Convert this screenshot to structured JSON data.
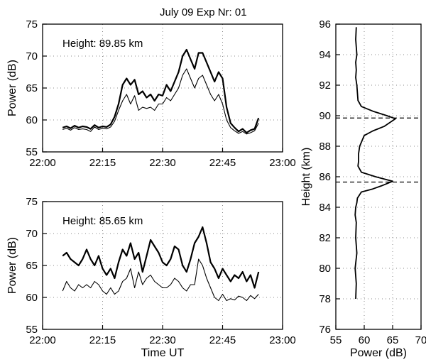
{
  "header": "July 09   Exp Nr: 01",
  "chart_data": [
    {
      "id": "top",
      "type": "line",
      "annotation": "Height: 89.85 km",
      "xlabel": "",
      "ylabel": "Power (dB)",
      "xlim": [
        0,
        60
      ],
      "ylim": [
        55,
        75
      ],
      "xticks": [
        0,
        15,
        30,
        45,
        60
      ],
      "xtick_labels": [
        "22:00",
        "22:15",
        "22:30",
        "22:45",
        "23:00"
      ],
      "yticks": [
        55,
        60,
        65,
        70,
        75
      ],
      "ytick_labels": [
        "55",
        "60",
        "65",
        "70",
        "75"
      ],
      "grid": true,
      "series": [
        {
          "style": "thick",
          "x": [
            5,
            6,
            7,
            8,
            9,
            10,
            11,
            12,
            13,
            14,
            15,
            16,
            17,
            18,
            19,
            20,
            21,
            22,
            23,
            24,
            25,
            26,
            27,
            28,
            29,
            30,
            31,
            32,
            33,
            34,
            35,
            36,
            37,
            38,
            39,
            40,
            41,
            42,
            43,
            44,
            45,
            46,
            47,
            48,
            49,
            50,
            51,
            52,
            53,
            54
          ],
          "y": [
            58.8,
            59.0,
            58.7,
            59.1,
            58.8,
            59.0,
            58.9,
            58.6,
            59.2,
            58.8,
            59.0,
            58.9,
            59.3,
            60.5,
            62.5,
            65.5,
            66.5,
            65.5,
            66.3,
            64.0,
            64.5,
            63.5,
            64.0,
            63.0,
            64.0,
            63.8,
            65.5,
            64.5,
            66.0,
            67.5,
            70.0,
            71.0,
            69.5,
            68.0,
            70.5,
            70.5,
            69.0,
            67.5,
            66.0,
            67.5,
            66.5,
            62.0,
            59.5,
            58.8,
            58.2,
            58.6,
            58.0,
            58.4,
            58.6,
            60.3
          ]
        },
        {
          "style": "thin",
          "x": [
            5,
            6,
            7,
            8,
            9,
            10,
            11,
            12,
            13,
            14,
            15,
            16,
            17,
            18,
            19,
            20,
            21,
            22,
            23,
            24,
            25,
            26,
            27,
            28,
            29,
            30,
            31,
            32,
            33,
            34,
            35,
            36,
            37,
            38,
            39,
            40,
            41,
            42,
            43,
            44,
            45,
            46,
            47,
            48,
            49,
            50,
            51,
            52,
            53,
            54
          ],
          "y": [
            58.5,
            58.7,
            58.4,
            58.8,
            58.5,
            58.6,
            58.5,
            58.2,
            58.9,
            58.5,
            58.7,
            58.6,
            58.9,
            59.8,
            61.5,
            63.0,
            64.0,
            62.5,
            63.8,
            61.5,
            62.0,
            61.8,
            62.0,
            61.5,
            62.5,
            62.5,
            63.5,
            63.0,
            64.0,
            65.0,
            67.0,
            68.0,
            66.5,
            65.0,
            66.5,
            67.0,
            65.5,
            64.0,
            63.0,
            64.0,
            62.5,
            60.0,
            58.8,
            58.3,
            57.9,
            58.2,
            57.8,
            58.0,
            58.3,
            59.5
          ]
        }
      ]
    },
    {
      "id": "bottom",
      "type": "line",
      "annotation": "Height: 85.65 km",
      "xlabel": "Time UT",
      "ylabel": "Power (dB)",
      "xlim": [
        0,
        60
      ],
      "ylim": [
        55,
        75
      ],
      "xticks": [
        0,
        15,
        30,
        45,
        60
      ],
      "xtick_labels": [
        "22:00",
        "22:15",
        "22:30",
        "22:45",
        "23:00"
      ],
      "yticks": [
        55,
        60,
        65,
        70,
        75
      ],
      "ytick_labels": [
        "55",
        "60",
        "65",
        "70",
        "75"
      ],
      "grid": true,
      "series": [
        {
          "style": "thick",
          "x": [
            5,
            6,
            7,
            8,
            9,
            10,
            11,
            12,
            13,
            14,
            15,
            16,
            17,
            18,
            19,
            20,
            21,
            22,
            23,
            24,
            25,
            26,
            27,
            28,
            29,
            30,
            31,
            32,
            33,
            34,
            35,
            36,
            37,
            38,
            39,
            40,
            41,
            42,
            43,
            44,
            45,
            46,
            47,
            48,
            49,
            50,
            51,
            52,
            53,
            54
          ],
          "y": [
            66.5,
            67.0,
            66.0,
            65.5,
            65.0,
            66.0,
            67.5,
            66.0,
            65.0,
            66.5,
            64.5,
            63.5,
            64.5,
            63.0,
            65.5,
            67.5,
            66.5,
            68.5,
            66.0,
            67.0,
            64.0,
            66.5,
            69.0,
            68.0,
            67.0,
            65.5,
            65.0,
            66.0,
            68.0,
            67.5,
            65.0,
            64.0,
            66.0,
            68.5,
            69.5,
            71.0,
            68.5,
            65.5,
            64.5,
            63.0,
            64.5,
            63.5,
            62.5,
            63.5,
            63.0,
            64.0,
            62.5,
            63.5,
            61.5,
            64.0
          ]
        },
        {
          "style": "thin",
          "x": [
            5,
            6,
            7,
            8,
            9,
            10,
            11,
            12,
            13,
            14,
            15,
            16,
            17,
            18,
            19,
            20,
            21,
            22,
            23,
            24,
            25,
            26,
            27,
            28,
            29,
            30,
            31,
            32,
            33,
            34,
            35,
            36,
            37,
            38,
            39,
            40,
            41,
            42,
            43,
            44,
            45,
            46,
            47,
            48,
            49,
            50,
            51,
            52,
            53,
            54
          ],
          "y": [
            61.0,
            62.5,
            61.5,
            61.0,
            62.0,
            61.5,
            62.0,
            61.5,
            62.5,
            62.0,
            61.0,
            60.5,
            61.5,
            60.5,
            61.0,
            62.5,
            63.0,
            64.5,
            61.5,
            64.0,
            62.0,
            63.0,
            63.5,
            62.5,
            62.0,
            61.5,
            61.5,
            62.0,
            63.0,
            62.5,
            61.5,
            61.0,
            62.0,
            62.0,
            66.0,
            65.0,
            63.0,
            61.5,
            60.0,
            59.5,
            60.5,
            59.5,
            59.8,
            59.6,
            60.2,
            60.0,
            59.5,
            60.3,
            59.8,
            60.5
          ]
        }
      ]
    },
    {
      "id": "profile",
      "type": "line",
      "annotation": "",
      "xlabel": "Power (dB)",
      "ylabel": "Height (km)",
      "xlim": [
        55,
        70
      ],
      "ylim": [
        76,
        96
      ],
      "xticks": [
        55,
        60,
        65,
        70
      ],
      "xtick_labels": [
        "55",
        "60",
        "65",
        "70"
      ],
      "yticks": [
        76,
        78,
        80,
        82,
        84,
        86,
        88,
        90,
        92,
        94,
        96
      ],
      "ytick_labels": [
        "76",
        "78",
        "80",
        "82",
        "84",
        "86",
        "88",
        "90",
        "92",
        "94",
        "96"
      ],
      "grid": true,
      "reference_heights": [
        89.85,
        85.65
      ],
      "series": [
        {
          "style": "medium",
          "x": [
            58.5,
            58.6,
            58.4,
            58.7,
            58.5,
            58.6,
            58.4,
            58.5,
            58.7,
            58.8,
            59.5,
            61.5,
            63.0,
            65.0,
            62.0,
            59.5,
            58.9,
            59.0,
            59.0,
            59.2,
            60.0,
            61.5,
            63.5,
            65.5,
            64.0,
            61.5,
            59.5,
            58.9,
            58.8,
            58.7,
            58.5,
            58.6,
            58.5,
            58.7,
            58.6,
            58.5,
            58.6
          ],
          "y": [
            78.0,
            79.0,
            80.0,
            81.0,
            82.0,
            83.0,
            83.5,
            84.0,
            84.3,
            84.6,
            85.0,
            85.2,
            85.4,
            85.7,
            86.0,
            86.3,
            86.7,
            87.0,
            87.5,
            88.0,
            88.7,
            89.0,
            89.3,
            89.8,
            90.0,
            90.3,
            90.6,
            91.0,
            91.5,
            92.0,
            92.5,
            93.0,
            93.5,
            94.0,
            94.5,
            95.0,
            95.8
          ]
        }
      ]
    }
  ]
}
